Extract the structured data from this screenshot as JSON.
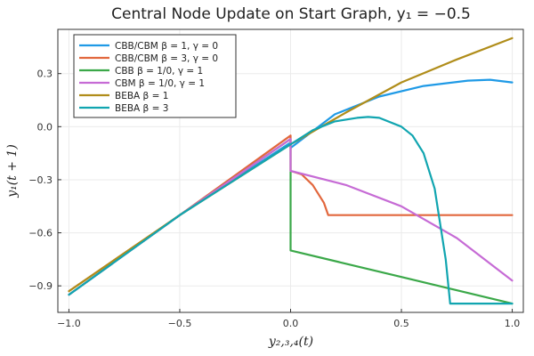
{
  "chart_data": {
    "type": "line",
    "title": "Central Node Update on Start Graph, y₁ = −0.5",
    "xlabel": "y₂,₃,₄(t)",
    "ylabel": "y₁(t + 1)",
    "xlim": [
      -1.05,
      1.05
    ],
    "ylim": [
      -1.05,
      0.55
    ],
    "xticks": [
      -1.0,
      -0.5,
      0.0,
      0.5,
      1.0
    ],
    "xtick_labels": [
      "−1.0",
      "−0.5",
      "0.0",
      "0.5",
      "1.0"
    ],
    "yticks": [
      0.3,
      0.0,
      -0.3,
      -0.6,
      -0.9
    ],
    "ytick_labels": [
      "0.3",
      "0.0",
      "−0.3",
      "−0.6",
      "−0.9"
    ],
    "grid": true,
    "legend_position": "top-left",
    "series": [
      {
        "name": "CBB/CBM β = 1, γ = 0",
        "color": "#1f9ae6",
        "x": [
          -1.0,
          -0.5,
          0.0,
          0.0,
          0.2,
          0.4,
          0.6,
          0.8,
          0.9,
          1.0
        ],
        "y": [
          -0.95,
          -0.5,
          -0.09,
          -0.12,
          0.07,
          0.17,
          0.23,
          0.26,
          0.265,
          0.25
        ]
      },
      {
        "name": "CBB/CBM β = 3, γ = 0",
        "color": "#e2673d",
        "x": [
          -1.0,
          -0.5,
          0.0,
          0.0,
          0.05,
          0.1,
          0.15,
          0.17,
          0.5,
          1.0
        ],
        "y": [
          -0.93,
          -0.5,
          -0.05,
          -0.25,
          -0.27,
          -0.33,
          -0.43,
          -0.5,
          -0.5,
          -0.5
        ]
      },
      {
        "name": "CBB β = 1/0, γ = 1",
        "color": "#3ba849",
        "x": [
          -1.0,
          -0.5,
          0.0,
          0.0,
          0.0,
          0.5,
          1.0
        ],
        "y": [
          -0.95,
          -0.5,
          -0.07,
          -0.25,
          -0.7,
          -0.85,
          -1.0
        ]
      },
      {
        "name": "CBM β = 1/0, γ = 1",
        "color": "#c66bd5",
        "x": [
          -1.0,
          -0.5,
          0.0,
          0.0,
          0.25,
          0.5,
          0.75,
          1.0
        ],
        "y": [
          -0.95,
          -0.5,
          -0.07,
          -0.25,
          -0.33,
          -0.45,
          -0.63,
          -0.87
        ]
      },
      {
        "name": "BEBA β = 1",
        "color": "#b08d1a",
        "x": [
          -1.0,
          -0.5,
          0.0,
          0.25,
          0.5,
          0.75,
          1.0
        ],
        "y": [
          -0.93,
          -0.5,
          -0.1,
          0.08,
          0.25,
          0.38,
          0.5
        ]
      },
      {
        "name": "BEBA β = 3",
        "color": "#11a5b0",
        "x": [
          -1.0,
          -0.5,
          0.0,
          0.1,
          0.2,
          0.3,
          0.35,
          0.4,
          0.5,
          0.55,
          0.6,
          0.65,
          0.7,
          0.72,
          0.75,
          1.0
        ],
        "y": [
          -0.95,
          -0.5,
          -0.1,
          -0.02,
          0.03,
          0.05,
          0.055,
          0.05,
          0.0,
          -0.05,
          -0.15,
          -0.35,
          -0.75,
          -1.0,
          -1.0,
          -1.0
        ]
      }
    ]
  }
}
